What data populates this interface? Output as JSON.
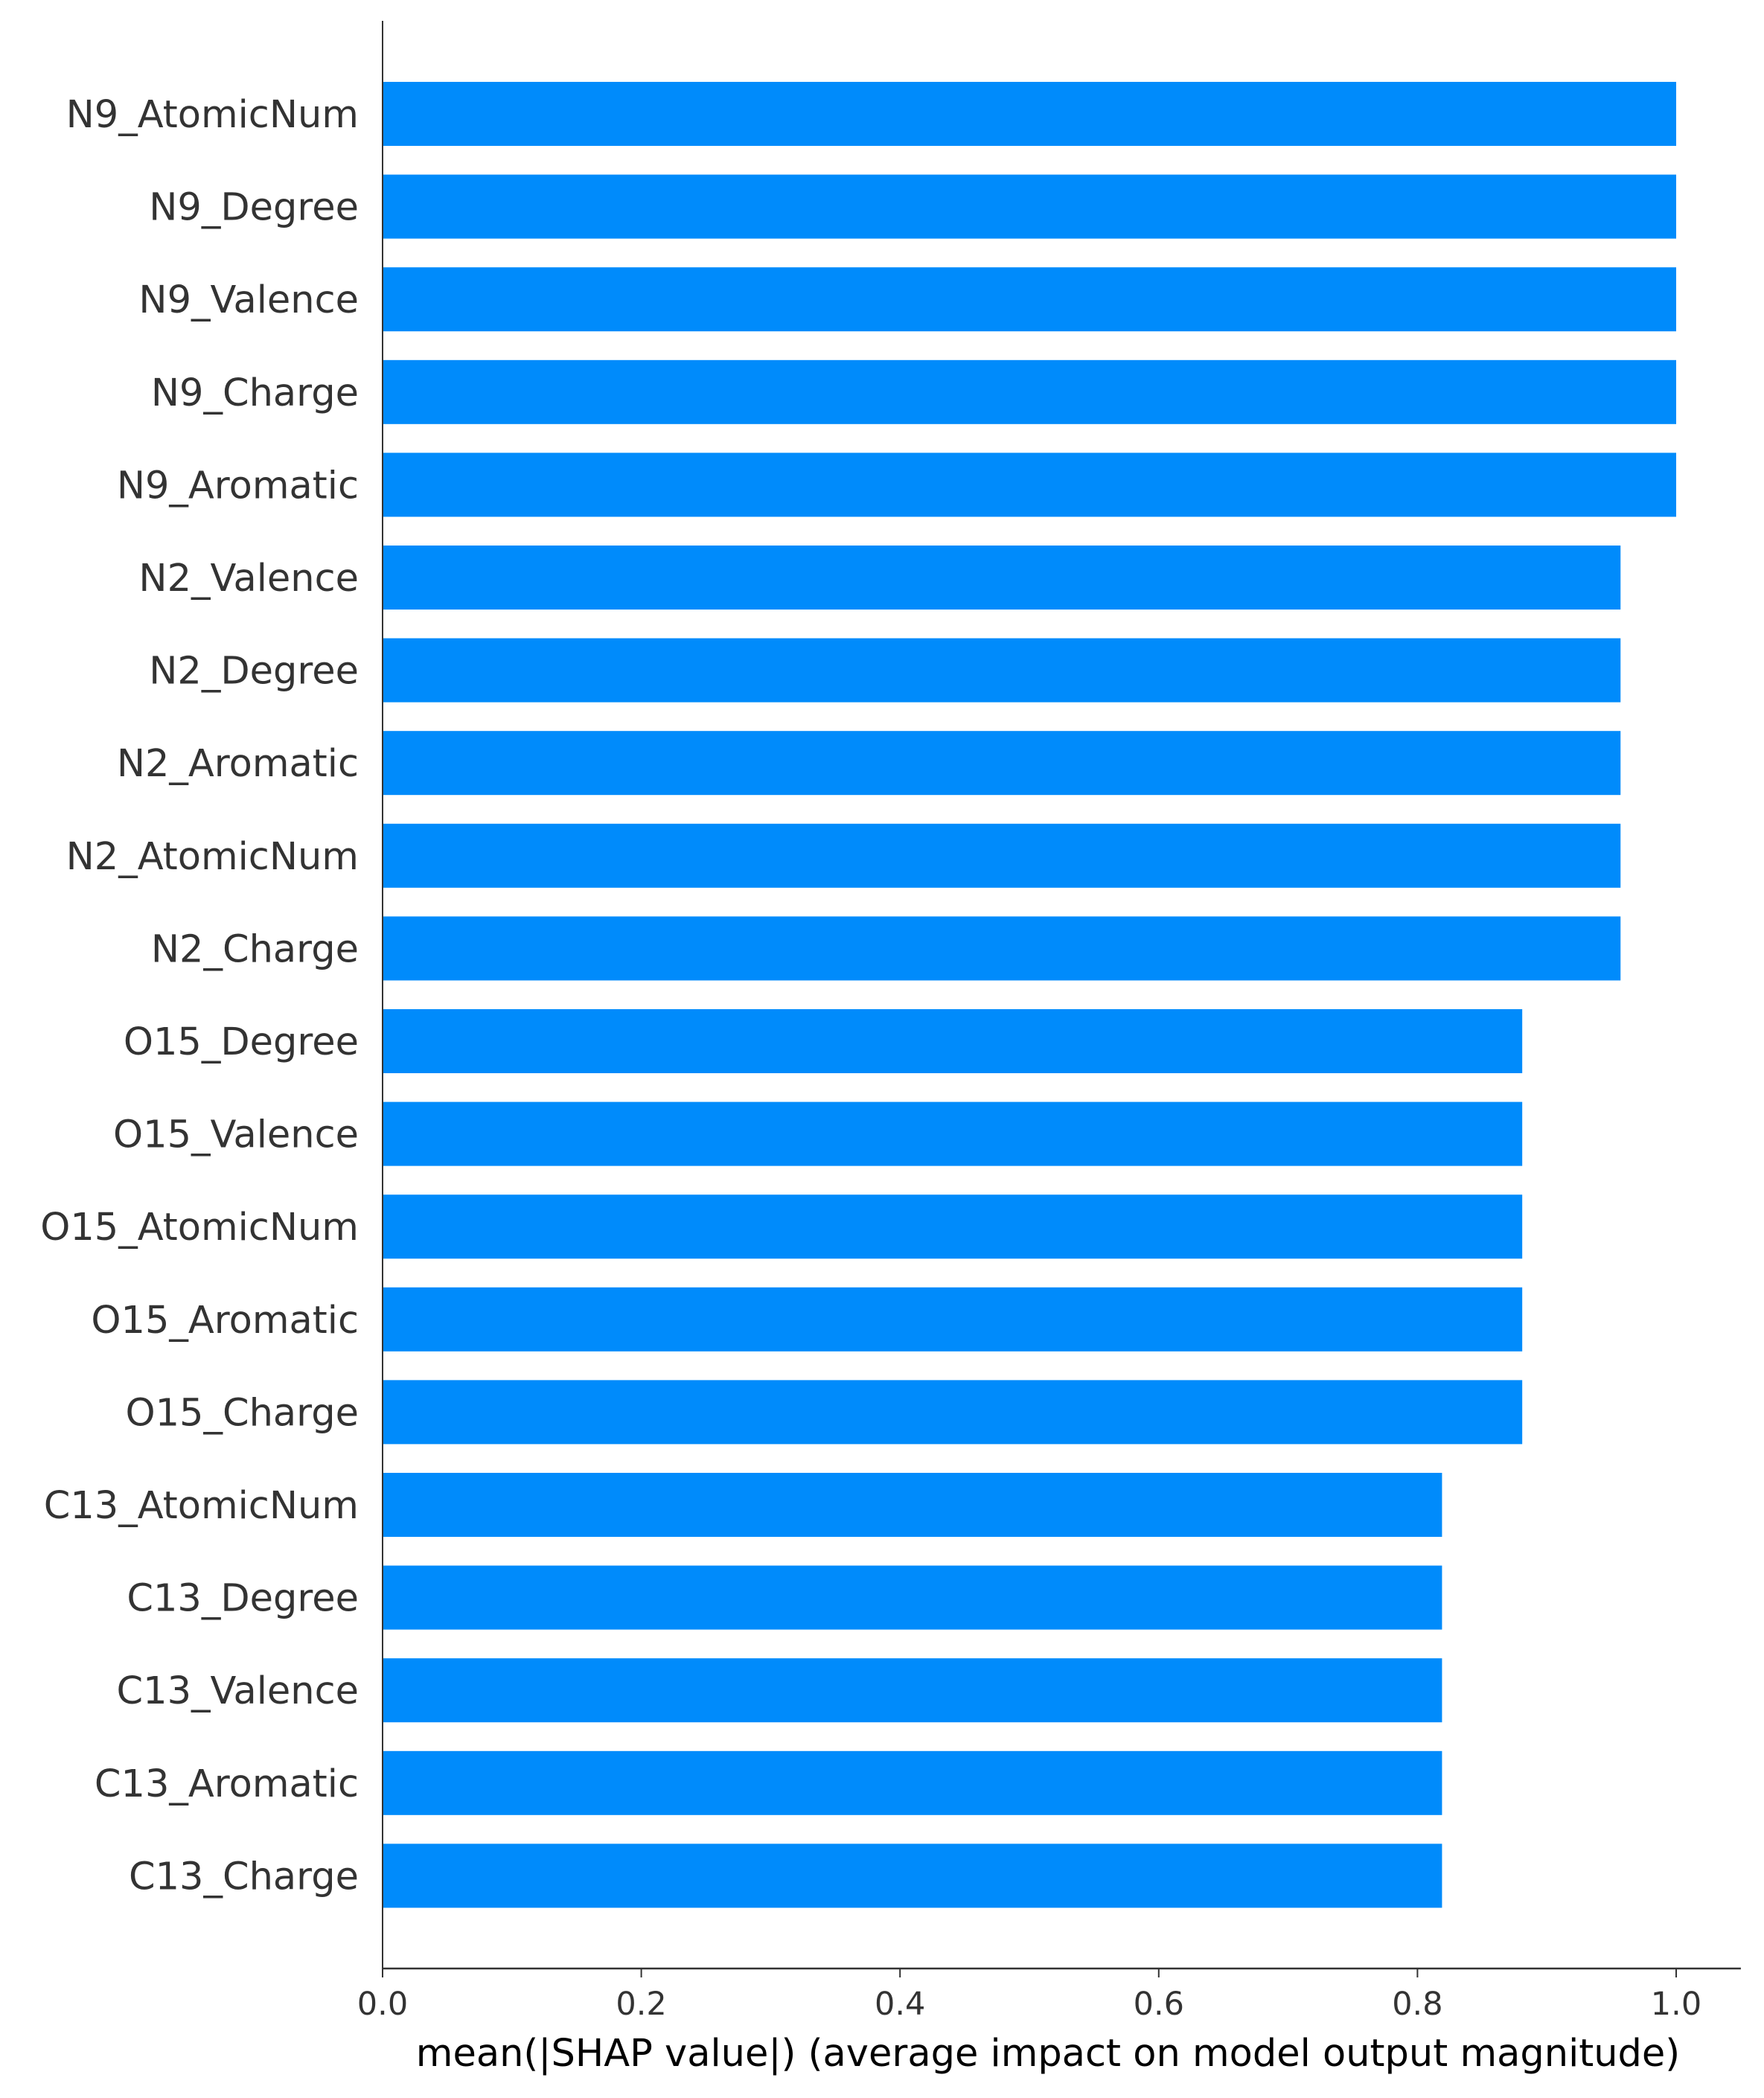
{
  "chart_data": {
    "type": "bar",
    "orientation": "horizontal",
    "categories": [
      "N9_AtomicNum",
      "N9_Degree",
      "N9_Valence",
      "N9_Charge",
      "N9_Aromatic",
      "N2_Valence",
      "N2_Degree",
      "N2_Aromatic",
      "N2_AtomicNum",
      "N2_Charge",
      "O15_Degree",
      "O15_Valence",
      "O15_AtomicNum",
      "O15_Aromatic",
      "O15_Charge",
      "C13_AtomicNum",
      "C13_Degree",
      "C13_Valence",
      "C13_Aromatic",
      "C13_Charge"
    ],
    "values": [
      1.0,
      1.0,
      1.0,
      1.0,
      1.0,
      0.957,
      0.957,
      0.957,
      0.957,
      0.957,
      0.881,
      0.881,
      0.881,
      0.881,
      0.881,
      0.819,
      0.819,
      0.819,
      0.819,
      0.819
    ],
    "title": "",
    "xlabel": "mean(|SHAP value|) (average impact on model output magnitude)",
    "ylabel": "",
    "xlim": [
      0.0,
      1.05
    ],
    "xticks": [
      "0.0",
      "0.2",
      "0.4",
      "0.6",
      "0.8",
      "1.0"
    ],
    "bar_color": "#008bfb",
    "grid": false
  }
}
